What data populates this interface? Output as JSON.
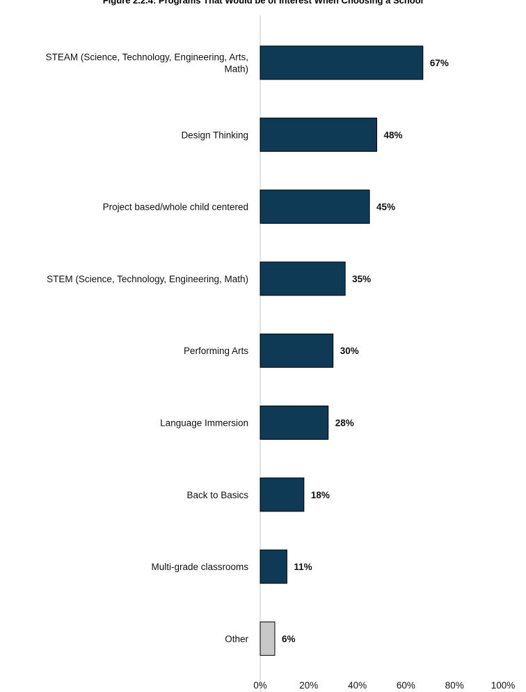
{
  "chart_data": {
    "type": "bar",
    "orientation": "horizontal",
    "title": "Figure 2.2.4: Programs That Would be of Interest When Choosing a School",
    "categories": [
      [
        "STEAM (Science, Technology, Engineering, Arts,",
        "Math)"
      ],
      [
        "Design Thinking"
      ],
      [
        "Project based/whole child centered"
      ],
      [
        "STEM (Science, Technology, Engineering, Math)"
      ],
      [
        "Performing Arts"
      ],
      [
        "Language Immersion"
      ],
      [
        "Back to Basics"
      ],
      [
        "Multi-grade classrooms"
      ],
      [
        "Other"
      ]
    ],
    "values": [
      67,
      48,
      45,
      35,
      30,
      28,
      18,
      11,
      6
    ],
    "data_labels": [
      "67%",
      "48%",
      "45%",
      "35%",
      "30%",
      "28%",
      "18%",
      "11%",
      "6%"
    ],
    "xlim": [
      0,
      100
    ],
    "x_ticks": [
      "0%",
      "20%",
      "40%",
      "60%",
      "80%",
      "100%"
    ],
    "grid": false,
    "legend": "none",
    "colors": {
      "bar": "#0e3a55",
      "bar_other": "#c8c8c8",
      "bar_stroke": "#000000",
      "axis": "#d9d9d9"
    }
  }
}
